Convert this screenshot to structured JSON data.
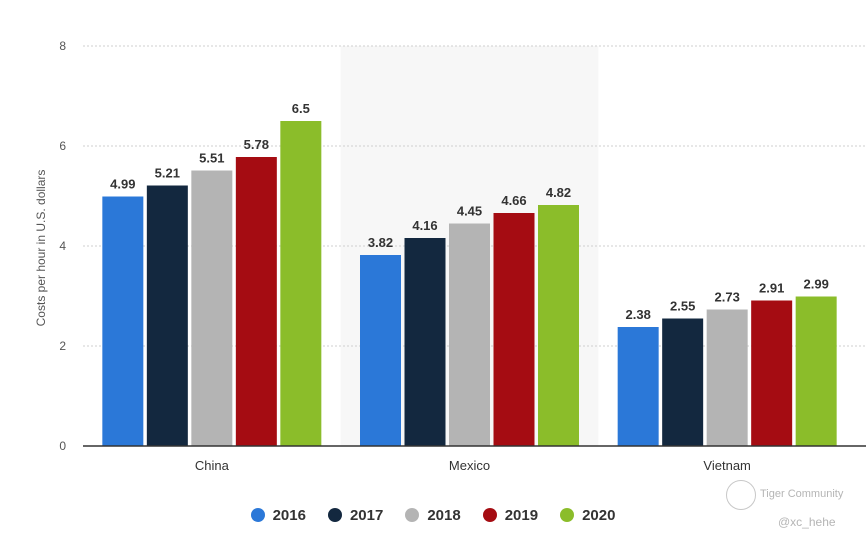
{
  "chart_data": {
    "type": "bar",
    "categories": [
      "China",
      "Mexico",
      "Vietnam"
    ],
    "series": [
      {
        "name": "2016",
        "color": "#2b78d8",
        "values": [
          4.99,
          3.82,
          2.38
        ]
      },
      {
        "name": "2017",
        "color": "#13283f",
        "values": [
          5.21,
          4.16,
          2.55
        ]
      },
      {
        "name": "2018",
        "color": "#b4b4b4",
        "values": [
          5.51,
          4.45,
          2.73
        ]
      },
      {
        "name": "2019",
        "color": "#a50c12",
        "values": [
          5.78,
          4.66,
          2.91
        ]
      },
      {
        "name": "2020",
        "color": "#8bbd2a",
        "values": [
          6.5,
          4.82,
          2.99
        ]
      }
    ],
    "data_labels": [
      [
        "4.99",
        "3.82",
        "2.38"
      ],
      [
        "5.21",
        "4.16",
        "2.55"
      ],
      [
        "5.51",
        "4.45",
        "2.73"
      ],
      [
        "5.78",
        "4.66",
        "2.91"
      ],
      [
        "6.5",
        "4.82",
        "2.99"
      ]
    ],
    "title": "",
    "xlabel": "",
    "ylabel": "Costs per hour in U.S. dollars",
    "ylim": [
      0,
      8
    ],
    "yticks": [
      "0",
      "2",
      "4",
      "6",
      "8"
    ],
    "grid": true,
    "legend": "bottom-center"
  },
  "watermark": {
    "brand": "Tiger Community",
    "handle": "@xc_hehe"
  }
}
